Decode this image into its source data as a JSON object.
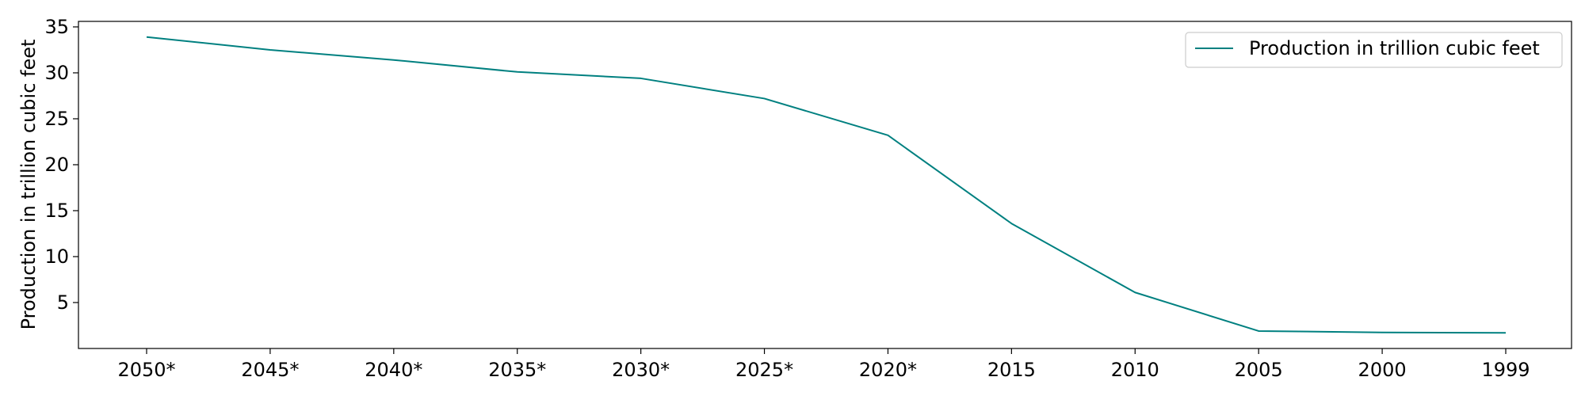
{
  "chart_data": {
    "type": "line",
    "title": "",
    "xlabel": "",
    "ylabel": "Production in trillion cubic feet",
    "categories": [
      "2050*",
      "2045*",
      "2040*",
      "2035*",
      "2030*",
      "2025*",
      "2020*",
      "2015",
      "2010",
      "2005",
      "2000",
      "1999"
    ],
    "series": [
      {
        "name": "Production in trillion cubic feet",
        "color": "#008080",
        "values": [
          33.9,
          32.5,
          31.4,
          30.1,
          29.4,
          27.2,
          23.2,
          13.6,
          6.1,
          1.9,
          1.75,
          1.7
        ]
      }
    ],
    "yticks": [
      5,
      10,
      15,
      20,
      25,
      30,
      35
    ],
    "ylim": [
      0,
      35.6
    ],
    "grid": false,
    "legend_position": "top-right"
  }
}
